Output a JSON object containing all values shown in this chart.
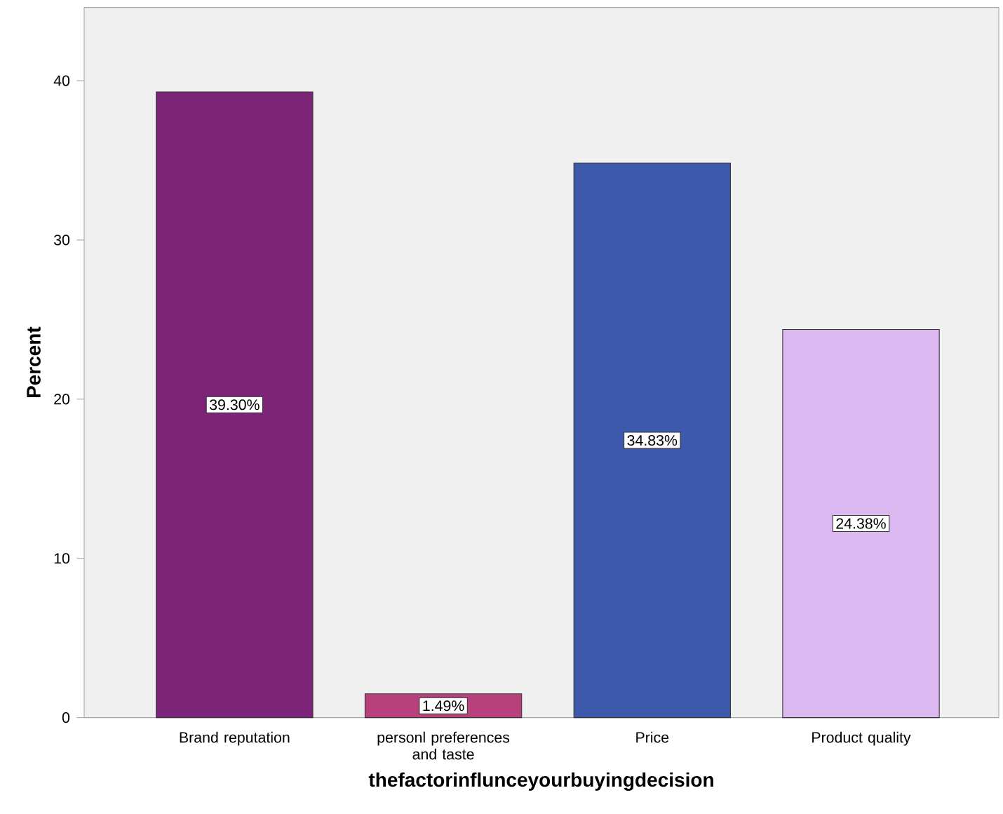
{
  "chart_data": {
    "type": "bar",
    "xlabel": "thefactorinflunceyourbuyingdecision",
    "ylabel": "Percent",
    "categories": [
      "Brand reputation",
      "personl preferences and taste",
      "Price",
      "Product quality"
    ],
    "values": [
      39.3,
      1.49,
      34.83,
      24.38
    ],
    "colors": [
      "#7b2478",
      "#b8407c",
      "#3d59ab",
      "#dbb8f0"
    ],
    "value_labels": [
      "39.30%",
      "1.49%",
      "34.83%",
      "24.38%"
    ],
    "ylim": [
      0,
      44.6
    ],
    "yticks": [
      0,
      10,
      20,
      30,
      40
    ]
  }
}
